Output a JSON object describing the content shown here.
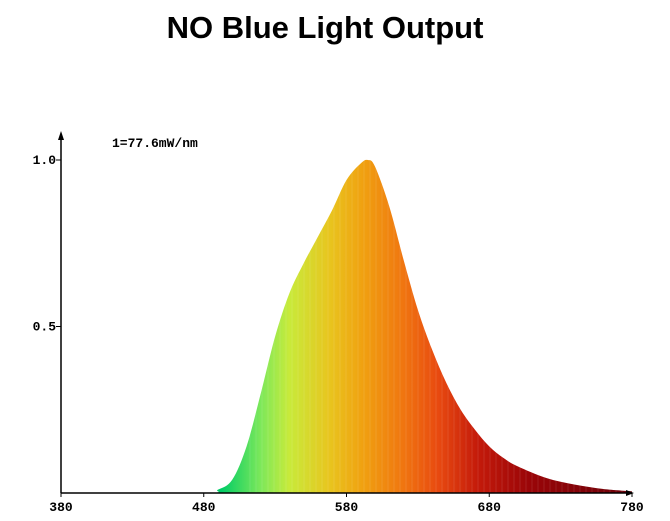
{
  "chart_data": {
    "type": "area",
    "title": "NO Blue Light Output",
    "annotation": "1=77.6mW/nm",
    "xlabel": "",
    "ylabel": "",
    "xlim": [
      380,
      780
    ],
    "ylim": [
      0,
      1.0
    ],
    "x_ticks": [
      "380",
      "480",
      "580",
      "680",
      "780"
    ],
    "y_ticks": [
      "0.5",
      "1.0"
    ],
    "grid": false,
    "series": [
      {
        "x": [
          380,
          480,
          490,
          500,
          510,
          520,
          530,
          540,
          550,
          560,
          570,
          580,
          590,
          595,
          600,
          610,
          620,
          630,
          640,
          650,
          660,
          670,
          680,
          690,
          700,
          720,
          740,
          760,
          780
        ],
        "values": [
          0,
          0,
          0.01,
          0.04,
          0.14,
          0.3,
          0.47,
          0.6,
          0.69,
          0.77,
          0.85,
          0.94,
          0.99,
          1.0,
          0.98,
          0.86,
          0.7,
          0.55,
          0.43,
          0.33,
          0.25,
          0.19,
          0.14,
          0.105,
          0.08,
          0.045,
          0.025,
          0.012,
          0.005
        ]
      }
    ]
  }
}
